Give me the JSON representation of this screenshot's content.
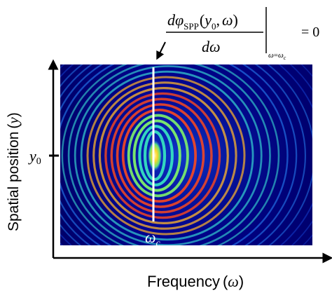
{
  "equation": {
    "numerator": {
      "d": "d",
      "phi": "φ",
      "sub": "SPP",
      "open": "(",
      "y": "y",
      "y_sub": "0",
      "comma": ",",
      "omega": "ω",
      "close": ")"
    },
    "denominator": "dω",
    "eval_omega": "ω",
    "eval_eq": "=",
    "eval_omega_c": "ω",
    "eval_c": "c",
    "rhs": "= 0"
  },
  "axes": {
    "x_label_text": "Frequency",
    "x_label_paren_open": "(",
    "x_label_symbol": "ω",
    "x_label_paren_close": ")",
    "y_label_text": "Spatial position",
    "y_label_paren_open": "(",
    "y_label_symbol": "y",
    "y_label_paren_close": ")"
  },
  "markers": {
    "y0_symbol": "y",
    "y0_sub": "0",
    "omega_c_symbol": "ω",
    "omega_c_sub": "c"
  },
  "colors": {
    "background_field": "#00007e",
    "ring_low": "#1e7bff",
    "ring_mid": "#2dd6c8",
    "ring_high": "#ff3a1a",
    "core": "#ffef3d",
    "marker_line": "#ffffff",
    "axis": "#000000"
  }
}
